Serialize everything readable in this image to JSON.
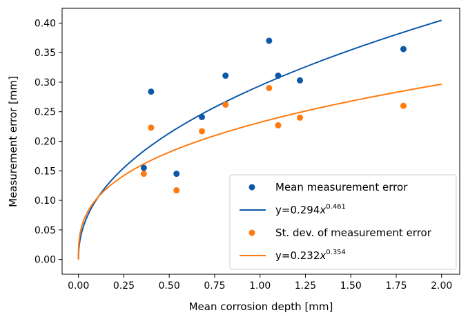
{
  "chart_data": {
    "type": "scatter",
    "xlabel": "Mean corrosion depth [mm]",
    "ylabel": "Measurement error [mm]",
    "xlim": [
      -0.09,
      2.1
    ],
    "ylim": [
      -0.025,
      0.425
    ],
    "xticks": [
      "0.00",
      "0.25",
      "0.50",
      "0.75",
      "1.00",
      "1.25",
      "1.50",
      "1.75",
      "2.00"
    ],
    "yticks": [
      "0.00",
      "0.05",
      "0.10",
      "0.15",
      "0.20",
      "0.25",
      "0.30",
      "0.35",
      "0.40"
    ],
    "grid": false,
    "legend_position": "lower right",
    "series": [
      {
        "name": "Mean measurement error",
        "kind": "scatter",
        "color": "#0b57a8",
        "points": [
          [
            0.36,
            0.155
          ],
          [
            0.4,
            0.284
          ],
          [
            0.54,
            0.145
          ],
          [
            0.68,
            0.241
          ],
          [
            0.81,
            0.311
          ],
          [
            1.05,
            0.37
          ],
          [
            1.1,
            0.311
          ],
          [
            1.22,
            0.303
          ],
          [
            1.79,
            0.356
          ]
        ]
      },
      {
        "name": "y=0.294x^0.461",
        "kind": "fit",
        "color": "#0b57a8",
        "coef": 0.294,
        "exponent": 0.461,
        "x_range": [
          0.0,
          2.0
        ]
      },
      {
        "name": "St. dev. of measurement error",
        "kind": "scatter",
        "color": "#ff7a0e",
        "points": [
          [
            0.36,
            0.145
          ],
          [
            0.4,
            0.223
          ],
          [
            0.54,
            0.117
          ],
          [
            0.68,
            0.217
          ],
          [
            0.81,
            0.262
          ],
          [
            1.05,
            0.29
          ],
          [
            1.1,
            0.227
          ],
          [
            1.22,
            0.24
          ],
          [
            1.79,
            0.26
          ]
        ]
      },
      {
        "name": "y=0.232x^0.354",
        "kind": "fit",
        "color": "#ff7a0e",
        "coef": 0.232,
        "exponent": 0.354,
        "x_range": [
          0.0,
          2.0
        ]
      }
    ],
    "legend": [
      {
        "marker": "dot",
        "color": "#0b57a8",
        "text": "Mean measurement error",
        "sup": ""
      },
      {
        "marker": "line",
        "color": "#0b57a8",
        "text": "y=0.294",
        "sup": "0.461"
      },
      {
        "marker": "dot",
        "color": "#ff7a0e",
        "text": "St. dev. of measurement error",
        "sup": ""
      },
      {
        "marker": "line",
        "color": "#ff7a0e",
        "text": "y=0.232",
        "sup": "0.354"
      }
    ]
  }
}
